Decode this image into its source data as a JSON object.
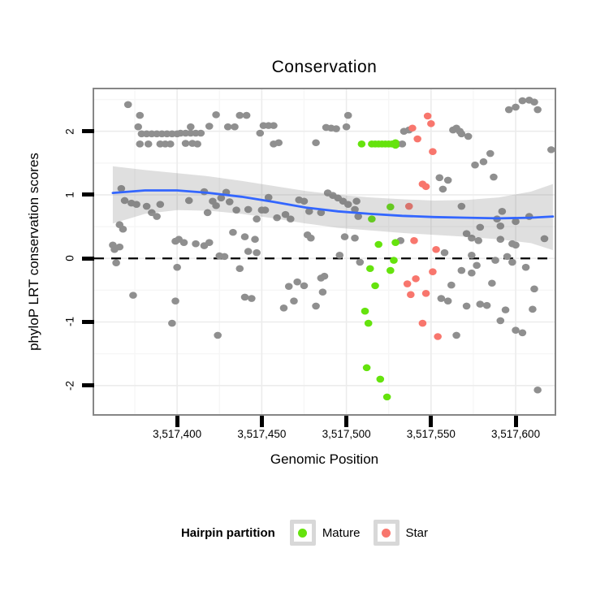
{
  "chart_data": {
    "type": "scatter",
    "title": "Conservation",
    "xlabel": "Genomic Position",
    "ylabel": "phyloP LRT conservation scores",
    "xlim": [
      3517351,
      3517623
    ],
    "ylim": [
      -2.45,
      2.66
    ],
    "x_ticks": [
      {
        "value": 3517400,
        "label": "3,517,400"
      },
      {
        "value": 3517450,
        "label": "3,517,450"
      },
      {
        "value": 3517500,
        "label": "3,517,500"
      },
      {
        "value": 3517550,
        "label": "3,517,550"
      },
      {
        "value": 3517600,
        "label": "3,517,600"
      }
    ],
    "y_ticks": [
      {
        "value": 2,
        "label": "2"
      },
      {
        "value": 1,
        "label": "1"
      },
      {
        "value": 0,
        "label": "0"
      },
      {
        "value": -1,
        "label": "-1"
      },
      {
        "value": -2,
        "label": "-2"
      }
    ],
    "grid": {
      "major_color": "#ececec",
      "minor_color": "#f6f6f6",
      "x_minor": [
        3517375,
        3517425,
        3517475,
        3517525,
        3517575
      ],
      "y_minor": [
        2.5,
        1.5,
        0.5,
        -0.5,
        -1.5
      ]
    },
    "panel_border_color": "#868686",
    "hline": {
      "y": 0,
      "style": "dashed",
      "color": "#000000"
    },
    "smooth": {
      "name": "loess fit with confidence band",
      "line_color": "#3366FF",
      "band_color": "rgba(110,110,110,0.22)",
      "line": [
        [
          3517362,
          1.03
        ],
        [
          3517381,
          1.07
        ],
        [
          3517400,
          1.07
        ],
        [
          3517419,
          1.03
        ],
        [
          3517438,
          0.97
        ],
        [
          3517457,
          0.89
        ],
        [
          3517476,
          0.8
        ],
        [
          3517495,
          0.74
        ],
        [
          3517514,
          0.7
        ],
        [
          3517533,
          0.67
        ],
        [
          3517552,
          0.65
        ],
        [
          3517571,
          0.64
        ],
        [
          3517590,
          0.63
        ],
        [
          3517609,
          0.64
        ],
        [
          3517622,
          0.66
        ]
      ],
      "upper": [
        [
          3517362,
          1.45
        ],
        [
          3517381,
          1.39
        ],
        [
          3517400,
          1.34
        ],
        [
          3517419,
          1.29
        ],
        [
          3517438,
          1.22
        ],
        [
          3517457,
          1.14
        ],
        [
          3517476,
          1.06
        ],
        [
          3517495,
          1.0
        ],
        [
          3517514,
          0.96
        ],
        [
          3517533,
          0.93
        ],
        [
          3517552,
          0.91
        ],
        [
          3517571,
          0.92
        ],
        [
          3517590,
          0.96
        ],
        [
          3517609,
          1.05
        ],
        [
          3517622,
          1.17
        ]
      ],
      "lower": [
        [
          3517362,
          0.55
        ],
        [
          3517381,
          0.7
        ],
        [
          3517400,
          0.76
        ],
        [
          3517419,
          0.75
        ],
        [
          3517438,
          0.7
        ],
        [
          3517457,
          0.63
        ],
        [
          3517476,
          0.55
        ],
        [
          3517495,
          0.48
        ],
        [
          3517514,
          0.44
        ],
        [
          3517533,
          0.4
        ],
        [
          3517552,
          0.37
        ],
        [
          3517571,
          0.34
        ],
        [
          3517590,
          0.3
        ],
        [
          3517609,
          0.24
        ],
        [
          3517622,
          0.13
        ]
      ]
    },
    "series": [
      {
        "name": "Other",
        "color": "#8f8f8f",
        "points": [
          [
            3517371,
            2.42
          ],
          [
            3517378,
            2.25
          ],
          [
            3517423,
            2.26
          ],
          [
            3517437,
            2.25
          ],
          [
            3517441,
            2.25
          ],
          [
            3517377,
            2.07
          ],
          [
            3517408,
            2.07
          ],
          [
            3517419,
            2.08
          ],
          [
            3517430,
            2.07
          ],
          [
            3517434,
            2.07
          ],
          [
            3517451,
            2.09
          ],
          [
            3517454,
            2.09
          ],
          [
            3517457,
            2.09
          ],
          [
            3517449,
            1.97
          ],
          [
            3517379,
            1.96
          ],
          [
            3517382,
            1.96
          ],
          [
            3517385,
            1.96
          ],
          [
            3517388,
            1.96
          ],
          [
            3517391,
            1.96
          ],
          [
            3517394,
            1.96
          ],
          [
            3517397,
            1.96
          ],
          [
            3517400,
            1.96
          ],
          [
            3517402,
            1.97
          ],
          [
            3517405,
            1.97
          ],
          [
            3517408,
            1.97
          ],
          [
            3517411,
            1.97
          ],
          [
            3517414,
            1.97
          ],
          [
            3517378,
            1.8
          ],
          [
            3517383,
            1.8
          ],
          [
            3517390,
            1.8
          ],
          [
            3517393,
            1.8
          ],
          [
            3517396,
            1.8
          ],
          [
            3517405,
            1.81
          ],
          [
            3517409,
            1.81
          ],
          [
            3517412,
            1.8
          ],
          [
            3517457,
            1.8
          ],
          [
            3517460,
            1.82
          ],
          [
            3517482,
            1.82
          ],
          [
            3517530,
            1.8
          ],
          [
            3517533,
            1.8
          ],
          [
            3517488,
            2.06
          ],
          [
            3517491,
            2.05
          ],
          [
            3517494,
            2.04
          ],
          [
            3517500,
            2.07
          ],
          [
            3517501,
            2.25
          ],
          [
            3517534,
            2.0
          ],
          [
            3517537,
            2.02
          ],
          [
            3517563,
            2.02
          ],
          [
            3517565,
            2.05
          ],
          [
            3517567,
            2.0
          ],
          [
            3517568,
            1.96
          ],
          [
            3517572,
            1.92
          ],
          [
            3517576,
            1.47
          ],
          [
            3517581,
            1.52
          ],
          [
            3517585,
            1.65
          ],
          [
            3517587,
            1.28
          ],
          [
            3517596,
            2.34
          ],
          [
            3517600,
            2.38
          ],
          [
            3517604,
            2.48
          ],
          [
            3517608,
            2.49
          ],
          [
            3517611,
            2.46
          ],
          [
            3517613,
            2.34
          ],
          [
            3517555,
            1.27
          ],
          [
            3517560,
            1.23
          ],
          [
            3517557,
            1.09
          ],
          [
            3517621,
            1.71
          ],
          [
            3517367,
            1.1
          ],
          [
            3517369,
            0.91
          ],
          [
            3517373,
            0.87
          ],
          [
            3517376,
            0.85
          ],
          [
            3517382,
            0.82
          ],
          [
            3517385,
            0.72
          ],
          [
            3517388,
            0.66
          ],
          [
            3517390,
            0.85
          ],
          [
            3517407,
            0.91
          ],
          [
            3517416,
            1.05
          ],
          [
            3517418,
            0.72
          ],
          [
            3517421,
            0.9
          ],
          [
            3517423,
            0.83
          ],
          [
            3517426,
            0.95
          ],
          [
            3517429,
            1.04
          ],
          [
            3517431,
            0.89
          ],
          [
            3517435,
            0.76
          ],
          [
            3517442,
            0.77
          ],
          [
            3517447,
            0.62
          ],
          [
            3517450,
            0.76
          ],
          [
            3517452,
            0.76
          ],
          [
            3517454,
            0.96
          ],
          [
            3517459,
            0.64
          ],
          [
            3517464,
            0.69
          ],
          [
            3517467,
            0.62
          ],
          [
            3517472,
            0.92
          ],
          [
            3517475,
            0.9
          ],
          [
            3517478,
            0.74
          ],
          [
            3517485,
            0.72
          ],
          [
            3517489,
            1.03
          ],
          [
            3517492,
            0.99
          ],
          [
            3517495,
            0.95
          ],
          [
            3517498,
            0.9
          ],
          [
            3517501,
            0.85
          ],
          [
            3517506,
            0.9
          ],
          [
            3517505,
            0.77
          ],
          [
            3517507,
            0.66
          ],
          [
            3517568,
            0.82
          ],
          [
            3517579,
            0.49
          ],
          [
            3517589,
            0.62
          ],
          [
            3517591,
            0.51
          ],
          [
            3517600,
            0.58
          ],
          [
            3517608,
            0.66
          ],
          [
            3517592,
            0.74
          ],
          [
            3517499,
            0.34
          ],
          [
            3517505,
            0.32
          ],
          [
            3517366,
            0.53
          ],
          [
            3517368,
            0.46
          ],
          [
            3517362,
            0.21
          ],
          [
            3517366,
            0.18
          ],
          [
            3517363,
            0.14
          ],
          [
            3517399,
            0.27
          ],
          [
            3517401,
            0.3
          ],
          [
            3517404,
            0.25
          ],
          [
            3517411,
            0.23
          ],
          [
            3517416,
            0.2
          ],
          [
            3517419,
            0.25
          ],
          [
            3517433,
            0.41
          ],
          [
            3517440,
            0.34
          ],
          [
            3517446,
            0.3
          ],
          [
            3517477,
            0.37
          ],
          [
            3517479,
            0.32
          ],
          [
            3517532,
            0.28
          ],
          [
            3517571,
            0.39
          ],
          [
            3517574,
            0.32
          ],
          [
            3517578,
            0.28
          ],
          [
            3517591,
            0.3
          ],
          [
            3517598,
            0.23
          ],
          [
            3517600,
            0.21
          ],
          [
            3517617,
            0.31
          ],
          [
            3517425,
            0.04
          ],
          [
            3517428,
            0.03
          ],
          [
            3517442,
            0.11
          ],
          [
            3517447,
            0.09
          ],
          [
            3517496,
            0.05
          ],
          [
            3517558,
            0.09
          ],
          [
            3517574,
            0.05
          ],
          [
            3517595,
            0.03
          ],
          [
            3517364,
            -0.07
          ],
          [
            3517374,
            -0.58
          ],
          [
            3517400,
            -0.14
          ],
          [
            3517399,
            -0.67
          ],
          [
            3517397,
            -1.02
          ],
          [
            3517424,
            -1.21
          ],
          [
            3517437,
            -0.16
          ],
          [
            3517440,
            -0.61
          ],
          [
            3517444,
            -0.63
          ],
          [
            3517466,
            -0.44
          ],
          [
            3517471,
            -0.37
          ],
          [
            3517475,
            -0.43
          ],
          [
            3517463,
            -0.78
          ],
          [
            3517469,
            -0.67
          ],
          [
            3517482,
            -0.75
          ],
          [
            3517485,
            -0.31
          ],
          [
            3517486,
            -0.53
          ],
          [
            3517508,
            -0.06
          ],
          [
            3517487,
            -0.28
          ],
          [
            3517588,
            -0.03
          ],
          [
            3517598,
            -0.06
          ],
          [
            3517606,
            -0.14
          ],
          [
            3517577,
            -0.11
          ],
          [
            3517568,
            -0.19
          ],
          [
            3517574,
            -0.23
          ],
          [
            3517562,
            -0.42
          ],
          [
            3517586,
            -0.39
          ],
          [
            3517556,
            -0.63
          ],
          [
            3517560,
            -0.67
          ],
          [
            3517571,
            -0.75
          ],
          [
            3517579,
            -0.72
          ],
          [
            3517583,
            -0.74
          ],
          [
            3517594,
            -0.81
          ],
          [
            3517610,
            -0.8
          ],
          [
            3517611,
            -0.48
          ],
          [
            3517591,
            -0.98
          ],
          [
            3517600,
            -1.13
          ],
          [
            3517604,
            -1.17
          ],
          [
            3517565,
            -1.21
          ],
          [
            3517613,
            -2.07
          ]
        ]
      },
      {
        "name": "Star",
        "color": "#F8766D",
        "points": [
          [
            3517539,
            2.05
          ],
          [
            3517548,
            2.24
          ],
          [
            3517550,
            2.12
          ],
          [
            3517542,
            1.88
          ],
          [
            3517551,
            1.68
          ],
          [
            3517545,
            1.17
          ],
          [
            3517547,
            1.13
          ],
          [
            3517537,
            0.82
          ],
          [
            3517540,
            0.28
          ],
          [
            3517553,
            0.14
          ],
          [
            3517551,
            -0.21
          ],
          [
            3517541,
            -0.32
          ],
          [
            3517536,
            -0.4
          ],
          [
            3517538,
            -0.57
          ],
          [
            3517547,
            -0.55
          ],
          [
            3517545,
            -1.02
          ],
          [
            3517554,
            -1.23
          ]
        ]
      },
      {
        "name": "Mature",
        "color": "#65E30D",
        "points": [
          [
            3517509,
            1.8
          ],
          [
            3517515,
            1.8
          ],
          [
            3517517,
            1.8
          ],
          [
            3517519,
            1.8
          ],
          [
            3517521,
            1.8
          ],
          [
            3517523,
            1.8
          ],
          [
            3517525,
            1.8
          ],
          [
            3517527,
            1.8
          ],
          [
            3517529,
            1.78
          ],
          [
            3517529,
            1.82
          ],
          [
            3517515,
            0.62
          ],
          [
            3517526,
            0.81
          ],
          [
            3517519,
            0.22
          ],
          [
            3517529,
            0.25
          ],
          [
            3517528,
            -0.03
          ],
          [
            3517514,
            -0.16
          ],
          [
            3517526,
            -0.19
          ],
          [
            3517517,
            -0.43
          ],
          [
            3517511,
            -0.83
          ],
          [
            3517513,
            -1.02
          ],
          [
            3517512,
            -1.72
          ],
          [
            3517520,
            -1.9
          ],
          [
            3517524,
            -2.18
          ]
        ]
      }
    ],
    "legend": {
      "title": "Hairpin partition",
      "position": "bottom",
      "entries": [
        {
          "label": "Mature",
          "color": "#65E30D"
        },
        {
          "label": "Star",
          "color": "#F8766D"
        }
      ]
    }
  }
}
